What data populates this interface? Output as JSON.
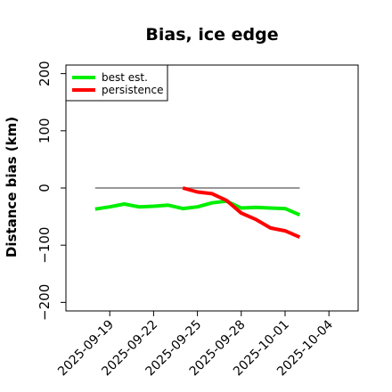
{
  "chart_data": {
    "type": "line",
    "title": "Bias, ice edge",
    "ylabel": "Distance bias (km)",
    "xlabel": "",
    "ylim": [
      -215,
      215
    ],
    "yticks": [
      -200,
      -100,
      0,
      100,
      200
    ],
    "xlim": [
      "2025-09-16",
      "2025-10-06"
    ],
    "xticks": [
      "2025-09-19",
      "2025-09-22",
      "2025-09-25",
      "2025-09-28",
      "2025-10-01",
      "2025-10-04"
    ],
    "legend_position": "top-left",
    "grid": false,
    "reference_line": {
      "y": 0,
      "x_start": "2025-09-18",
      "x_end": "2025-10-02",
      "color": "#777777"
    },
    "series": [
      {
        "name": "best est.",
        "color": "#00ee00",
        "x": [
          "2025-09-18",
          "2025-09-19",
          "2025-09-20",
          "2025-09-21",
          "2025-09-22",
          "2025-09-23",
          "2025-09-24",
          "2025-09-25",
          "2025-09-26",
          "2025-09-27",
          "2025-09-28",
          "2025-09-29",
          "2025-09-30",
          "2025-10-01",
          "2025-10-02"
        ],
        "values": [
          -37,
          -33,
          -28,
          -33,
          -32,
          -30,
          -36,
          -33,
          -26,
          -23,
          -35,
          -34,
          -35,
          -36,
          -47
        ]
      },
      {
        "name": "persistence",
        "color": "#ff0000",
        "x": [
          "2025-09-24",
          "2025-09-25",
          "2025-09-26",
          "2025-09-27",
          "2025-09-28",
          "2025-09-29",
          "2025-09-30",
          "2025-10-01",
          "2025-10-02"
        ],
        "values": [
          0,
          -7,
          -10,
          -22,
          -44,
          -55,
          -70,
          -75,
          -86
        ]
      }
    ]
  }
}
